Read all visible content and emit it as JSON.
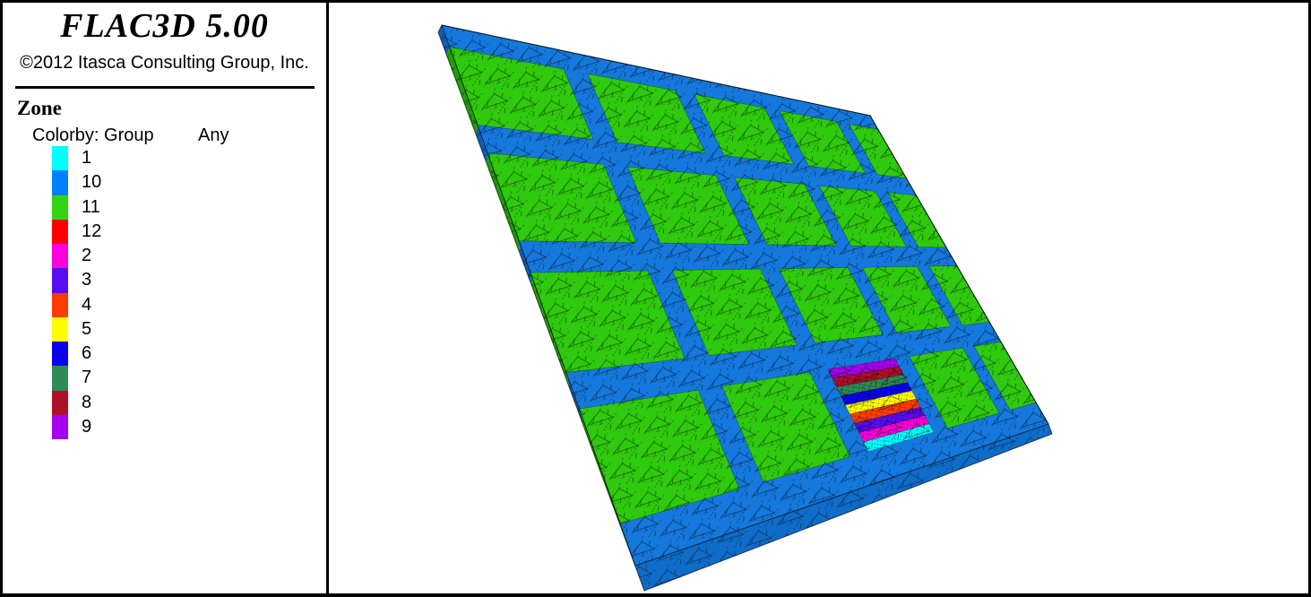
{
  "window": {
    "background": "#FFFFFF",
    "border_color": "#000000"
  },
  "header": {
    "title": "FLAC3D 5.00",
    "copyright": "©2012 Itasca Consulting Group, Inc."
  },
  "legend": {
    "section_title": "Zone",
    "colorby_label": "Colorby: Group",
    "filter_value": "Any",
    "items": [
      {
        "label": "1",
        "color": "#00FFFF"
      },
      {
        "label": "10",
        "color": "#0080FF"
      },
      {
        "label": "11",
        "color": "#33D414"
      },
      {
        "label": "12",
        "color": "#FF0000"
      },
      {
        "label": "2",
        "color": "#FF00DC"
      },
      {
        "label": "3",
        "color": "#5A0CF0"
      },
      {
        "label": "4",
        "color": "#FF3C00"
      },
      {
        "label": "5",
        "color": "#FFFF00"
      },
      {
        "label": "6",
        "color": "#0B00F0"
      },
      {
        "label": "7",
        "color": "#2E8B57"
      },
      {
        "label": "8",
        "color": "#AE1028"
      },
      {
        "label": "9",
        "color": "#A800F0"
      }
    ]
  },
  "model": {
    "grid": {
      "panel_rows": 4,
      "panel_cols": 5,
      "panel_group": "11",
      "street_group": "10",
      "border_group": "10"
    },
    "striped_panel": {
      "row": 4,
      "col": 3,
      "stripe_groups_top_to_bottom": [
        "9",
        "8",
        "7",
        "6",
        "5",
        "4",
        "3",
        "2",
        "1"
      ]
    },
    "surface_colors": {
      "panel": "#2FC90D",
      "street": "#1578DC"
    },
    "side_colors": {
      "panel": "#1FA006",
      "street": "#0C5FBB",
      "bottom": "#0F6CC8"
    },
    "mesh_line_color": "#000000"
  }
}
